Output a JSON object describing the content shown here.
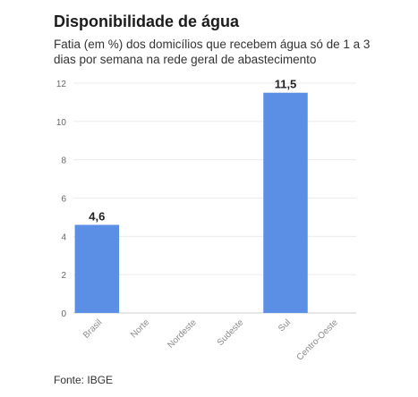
{
  "chart_data": {
    "type": "bar",
    "title": "Disponibilidade de água",
    "subtitle": "Fatia (em %) dos domicílios que recebem água só de 1 a 3 dias por semana na rede geral de abastecimento",
    "categories": [
      "Brasil",
      "Norte",
      "Nordeste",
      "Sudeste",
      "Sul",
      "Centro-Oeste"
    ],
    "values": [
      4.6,
      null,
      null,
      null,
      11.5,
      null
    ],
    "value_labels": [
      "4,6",
      "",
      "",
      "",
      "11,5",
      ""
    ],
    "yticks": [
      "0",
      "2",
      "4",
      "6",
      "8",
      "10",
      "12"
    ],
    "ylim": [
      0,
      12
    ],
    "xlabel": "",
    "ylabel": "",
    "grid": true,
    "bar_color": "#5b8fe6",
    "source": "Fonte: IBGE"
  }
}
